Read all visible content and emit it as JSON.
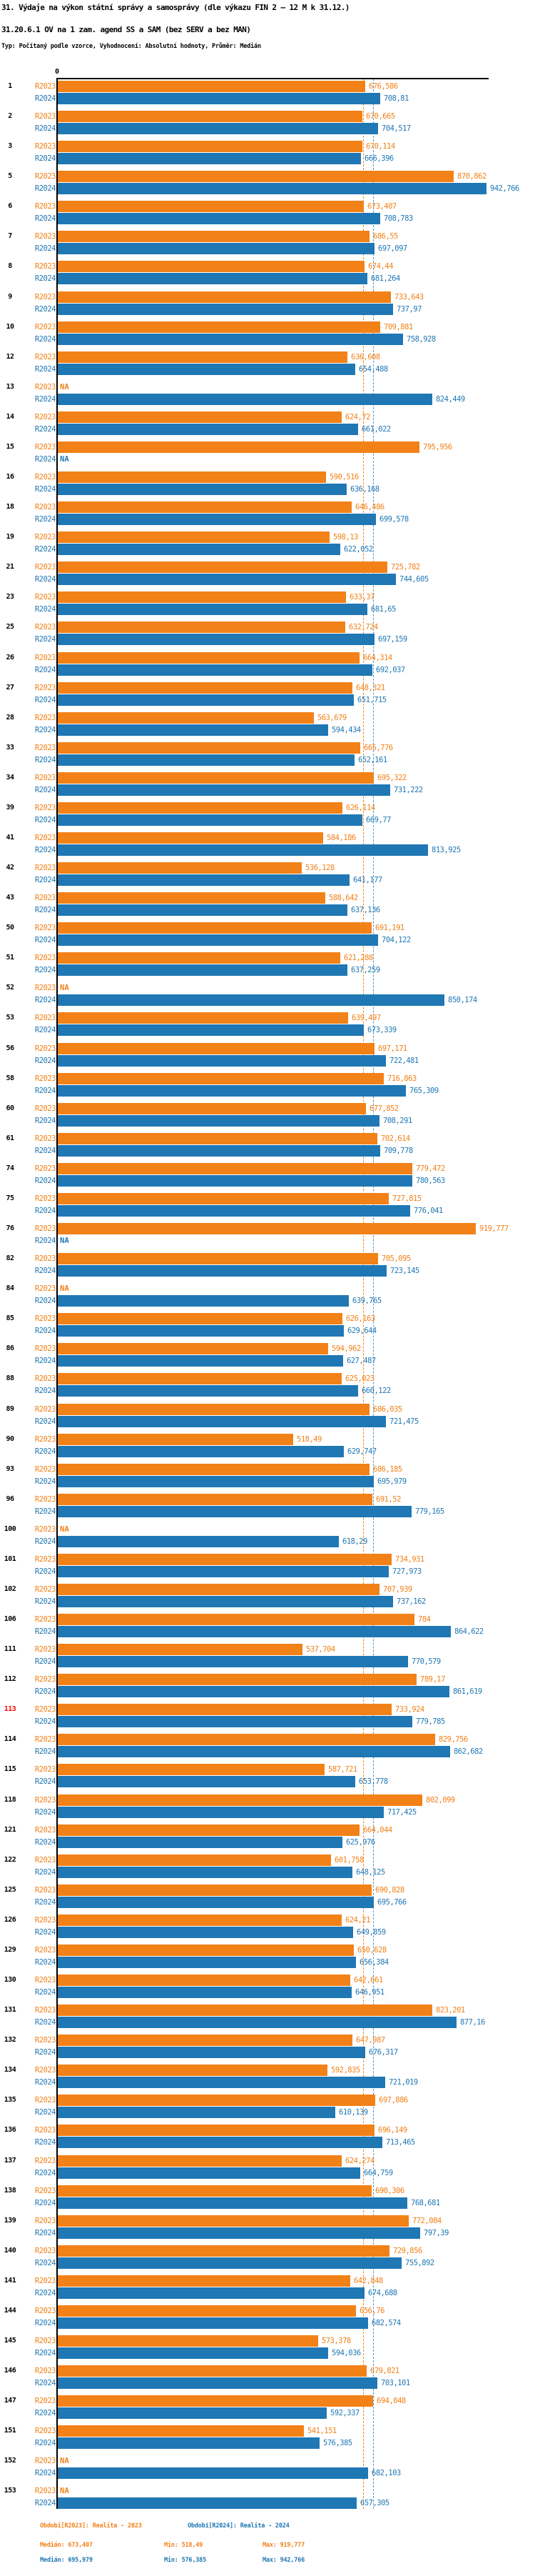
{
  "title": "31. Výdaje na výkon státní správy a samosprávy (dle výkazu FIN 2 – 12 M k 31.12.)",
  "subtitle": "31.20.6.1 OV na 1 zam. agend SS a SAM (bez SERV a bez MAN)",
  "meta_line": "Typ: Počítaný podle vzorce, Vyhodnocení: Absolutní hodnoty, Průměr: Medián",
  "axis": {
    "zero_label": "0"
  },
  "na_label": "NA",
  "colors": {
    "bar_2023": "#F28118",
    "bar_2024": "#1F77B4",
    "median_line_2023": "#F08414",
    "median_line_2024": "#5495C3",
    "highlight_row_number": "#ff0000",
    "axis": "#000000"
  },
  "legend": {
    "r2023": {
      "period": "Období[R2023]: Realita - 2023",
      "median": "Medián: 673,407",
      "min": "Min: 518,49",
      "max": "Max: 919,777"
    },
    "r2024": {
      "period": "Období[R2024]: Realita - 2024",
      "median": "Medián: 695,979",
      "min": "Min: 576,385",
      "max": "Max: 942,766"
    }
  },
  "chart_data": {
    "type": "bar",
    "orientation": "horizontal",
    "x_axis": {
      "start": 0,
      "tick_labels": [
        "0"
      ]
    },
    "series": [
      {
        "name": "R2023",
        "color": "#F28118"
      },
      {
        "name": "R2024",
        "color": "#1F77B4"
      }
    ],
    "median_2023": 673.407,
    "median_2024": 695.979,
    "highlighted_group": "113",
    "groups": [
      {
        "n": "1",
        "r2023": 676.586,
        "r2024": 708.81
      },
      {
        "n": "2",
        "r2023": 670.665,
        "r2024": 704.517
      },
      {
        "n": "3",
        "r2023": 670.114,
        "r2024": 666.396
      },
      {
        "n": "5",
        "r2023": 870.862,
        "r2024": 942.766
      },
      {
        "n": "6",
        "r2023": 673.407,
        "r2024": 708.783
      },
      {
        "n": "7",
        "r2023": 686.55,
        "r2024": 697.097
      },
      {
        "n": "8",
        "r2023": 674.44,
        "r2024": 681.264
      },
      {
        "n": "9",
        "r2023": 733.643,
        "r2024": 737.97
      },
      {
        "n": "10",
        "r2023": 709.881,
        "r2024": 758.928
      },
      {
        "n": "12",
        "r2023": 636.608,
        "r2024": 654.488
      },
      {
        "n": "13",
        "r2023": null,
        "r2024": 824.449
      },
      {
        "n": "14",
        "r2023": 624.72,
        "r2024": 661.022
      },
      {
        "n": "15",
        "r2023": 795.956,
        "r2024": null
      },
      {
        "n": "16",
        "r2023": 590.516,
        "r2024": 636.168
      },
      {
        "n": "18",
        "r2023": 646.486,
        "r2024": 699.578
      },
      {
        "n": "19",
        "r2023": 598.13,
        "r2024": 622.052
      },
      {
        "n": "21",
        "r2023": 725.782,
        "r2024": 744.605
      },
      {
        "n": "23",
        "r2023": 633.37,
        "r2024": 681.65
      },
      {
        "n": "25",
        "r2023": 632.724,
        "r2024": 697.159
      },
      {
        "n": "26",
        "r2023": 664.314,
        "r2024": 692.037
      },
      {
        "n": "27",
        "r2023": 648.321,
        "r2024": 651.715
      },
      {
        "n": "28",
        "r2023": 563.679,
        "r2024": 594.434
      },
      {
        "n": "33",
        "r2023": 665.776,
        "r2024": 652.161
      },
      {
        "n": "34",
        "r2023": 695.322,
        "r2024": 731.222
      },
      {
        "n": "39",
        "r2023": 626.114,
        "r2024": 669.77
      },
      {
        "n": "41",
        "r2023": 584.186,
        "r2024": 813.925
      },
      {
        "n": "42",
        "r2023": 536.128,
        "r2024": 641.177
      },
      {
        "n": "43",
        "r2023": 588.642,
        "r2024": 637.136
      },
      {
        "n": "50",
        "r2023": 691.191,
        "r2024": 704.122
      },
      {
        "n": "51",
        "r2023": 621.288,
        "r2024": 637.259
      },
      {
        "n": "52",
        "r2023": null,
        "r2024": 850.174
      },
      {
        "n": "53",
        "r2023": 639.497,
        "r2024": 673.339
      },
      {
        "n": "56",
        "r2023": 697.171,
        "r2024": 722.481
      },
      {
        "n": "58",
        "r2023": 716.863,
        "r2024": 765.309
      },
      {
        "n": "60",
        "r2023": 677.852,
        "r2024": 708.291
      },
      {
        "n": "61",
        "r2023": 702.614,
        "r2024": 709.778
      },
      {
        "n": "74",
        "r2023": 779.472,
        "r2024": 780.563
      },
      {
        "n": "75",
        "r2023": 727.815,
        "r2024": 776.041
      },
      {
        "n": "76",
        "r2023": 919.777,
        "r2024": null
      },
      {
        "n": "82",
        "r2023": 705.095,
        "r2024": 723.145
      },
      {
        "n": "84",
        "r2023": null,
        "r2024": 639.765
      },
      {
        "n": "85",
        "r2023": 626.163,
        "r2024": 629.644
      },
      {
        "n": "86",
        "r2023": 594.962,
        "r2024": 627.487
      },
      {
        "n": "88",
        "r2023": 625.023,
        "r2024": 660.122
      },
      {
        "n": "89",
        "r2023": 686.035,
        "r2024": 721.475
      },
      {
        "n": "90",
        "r2023": 518.49,
        "r2024": 629.747
      },
      {
        "n": "93",
        "r2023": 686.185,
        "r2024": 695.979
      },
      {
        "n": "96",
        "r2023": 691.52,
        "r2024": 779.165
      },
      {
        "n": "100",
        "r2023": null,
        "r2024": 618.29
      },
      {
        "n": "101",
        "r2023": 734.931,
        "r2024": 727.973
      },
      {
        "n": "102",
        "r2023": 707.939,
        "r2024": 737.162
      },
      {
        "n": "106",
        "r2023": 784,
        "r2024": 864.622
      },
      {
        "n": "111",
        "r2023": 537.704,
        "r2024": 770.579
      },
      {
        "n": "112",
        "r2023": 789.17,
        "r2024": 861.619
      },
      {
        "n": "113",
        "r2023": 733.924,
        "r2024": 779.785,
        "highlight": true
      },
      {
        "n": "114",
        "r2023": 829.756,
        "r2024": 862.682
      },
      {
        "n": "115",
        "r2023": 587.721,
        "r2024": 653.778
      },
      {
        "n": "118",
        "r2023": 802.099,
        "r2024": 717.425
      },
      {
        "n": "121",
        "r2023": 664.044,
        "r2024": 625.976
      },
      {
        "n": "122",
        "r2023": 601.758,
        "r2024": 648.125
      },
      {
        "n": "125",
        "r2023": 690.828,
        "r2024": 695.766
      },
      {
        "n": "126",
        "r2023": 624.21,
        "r2024": 649.859
      },
      {
        "n": "129",
        "r2023": 650.628,
        "r2024": 656.384
      },
      {
        "n": "130",
        "r2023": 642.661,
        "r2024": 646.951
      },
      {
        "n": "131",
        "r2023": 823.201,
        "r2024": 877.16
      },
      {
        "n": "132",
        "r2023": 647.987,
        "r2024": 676.317
      },
      {
        "n": "134",
        "r2023": 592.835,
        "r2024": 721.019
      },
      {
        "n": "135",
        "r2023": 697.886,
        "r2024": 610.139
      },
      {
        "n": "136",
        "r2023": 696.149,
        "r2024": 713.465
      },
      {
        "n": "137",
        "r2023": 624.274,
        "r2024": 664.759
      },
      {
        "n": "138",
        "r2023": 690.306,
        "r2024": 768.681
      },
      {
        "n": "139",
        "r2023": 772.084,
        "r2024": 797.39
      },
      {
        "n": "140",
        "r2023": 729.856,
        "r2024": 755.892
      },
      {
        "n": "141",
        "r2023": 642.848,
        "r2024": 674.688
      },
      {
        "n": "144",
        "r2023": 656.76,
        "r2024": 682.574
      },
      {
        "n": "145",
        "r2023": 573.378,
        "r2024": 594.036
      },
      {
        "n": "146",
        "r2023": 679.821,
        "r2024": 703.101
      },
      {
        "n": "147",
        "r2023": 694.048,
        "r2024": 592.337
      },
      {
        "n": "151",
        "r2023": 541.151,
        "r2024": 576.385
      },
      {
        "n": "152",
        "r2023": null,
        "r2024": 682.103
      },
      {
        "n": "153",
        "r2023": null,
        "r2024": 657.305
      }
    ]
  }
}
